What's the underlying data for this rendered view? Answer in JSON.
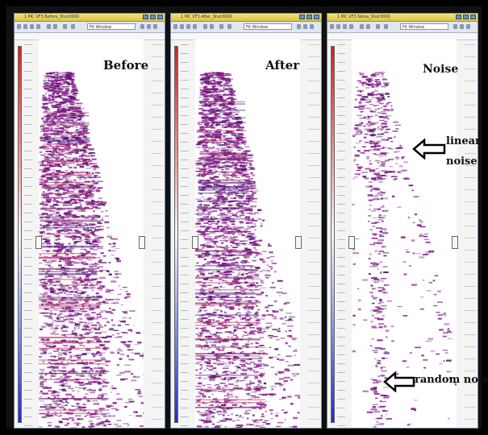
{
  "panels": [
    {
      "label": "Before",
      "title": "1 MC VF3 Before_Shot3000",
      "zoom": "Fit Window"
    },
    {
      "label": "After",
      "title": "1 MC VF3 After_Shot3000",
      "zoom": "Fit Window"
    },
    {
      "label": "Noise",
      "title": "1 MC VF3 Noise_Shot3000",
      "zoom": "Fit Window"
    }
  ],
  "annotations": {
    "linear": "linear\nnoise",
    "random": "random noise"
  },
  "colors": {
    "positive": "#8a1a8a",
    "negative": "#5a1670",
    "cbar_top": "#d21f1f",
    "cbar_bottom": "#1d2bd0"
  }
}
